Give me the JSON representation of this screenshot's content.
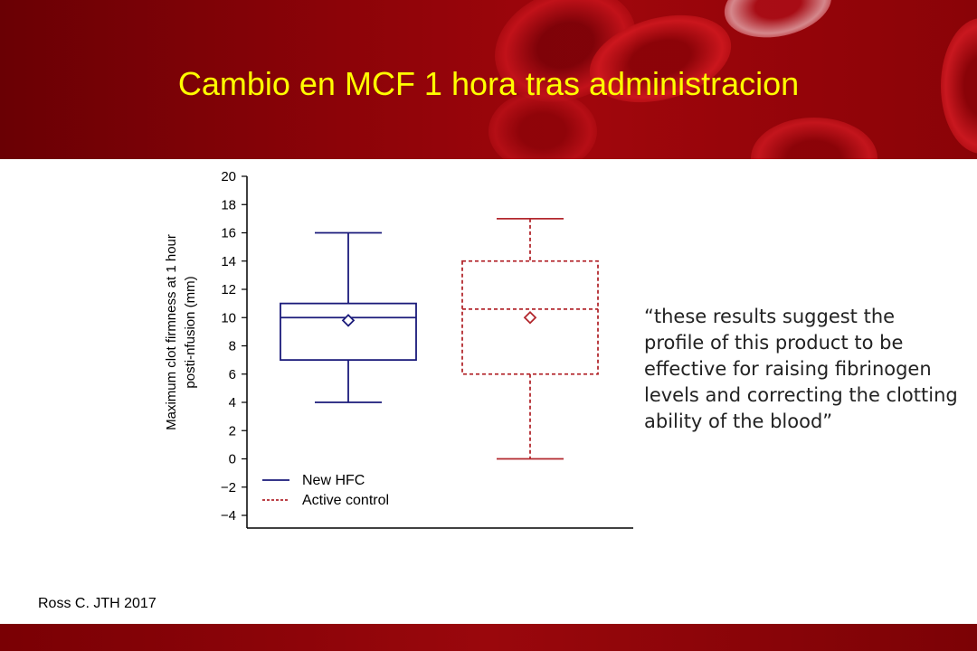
{
  "slide": {
    "title": "Cambio en MCF 1 hora tras administracion",
    "quote": "“these results suggest the profile of this product to be effective for raising fibrinogen levels and correcting the clotting ability of the blood”",
    "citation": "Ross C. JTH 2017",
    "colors": {
      "header": "#8c0308",
      "title": "#ffff00"
    }
  },
  "chart_data": {
    "type": "boxplot",
    "ylabel": "Maximum clot firmness at 1 hour posti-nfusion (mm)",
    "ylim": [
      -4,
      20
    ],
    "yticks": [
      20,
      18,
      16,
      14,
      12,
      10,
      8,
      6,
      4,
      2,
      0,
      -2,
      -4
    ],
    "ytick_labels": [
      "20",
      "18",
      "16",
      "14",
      "12",
      "10",
      "8",
      "6",
      "4",
      "2",
      "0",
      "−2",
      "−4"
    ],
    "grid": false,
    "legend_position": "bottom-left",
    "series": [
      {
        "name": "New HFC",
        "color": "#1a1a7a",
        "line": "solid",
        "min": 4,
        "q1": 7,
        "median": 10,
        "q3": 11,
        "max": 16,
        "mean": 9.8
      },
      {
        "name": "Active control",
        "color": "#b3282e",
        "line": "dashed",
        "min": 0,
        "q1": 6,
        "median": 10.6,
        "q3": 14,
        "max": 17,
        "mean": 10
      }
    ]
  }
}
